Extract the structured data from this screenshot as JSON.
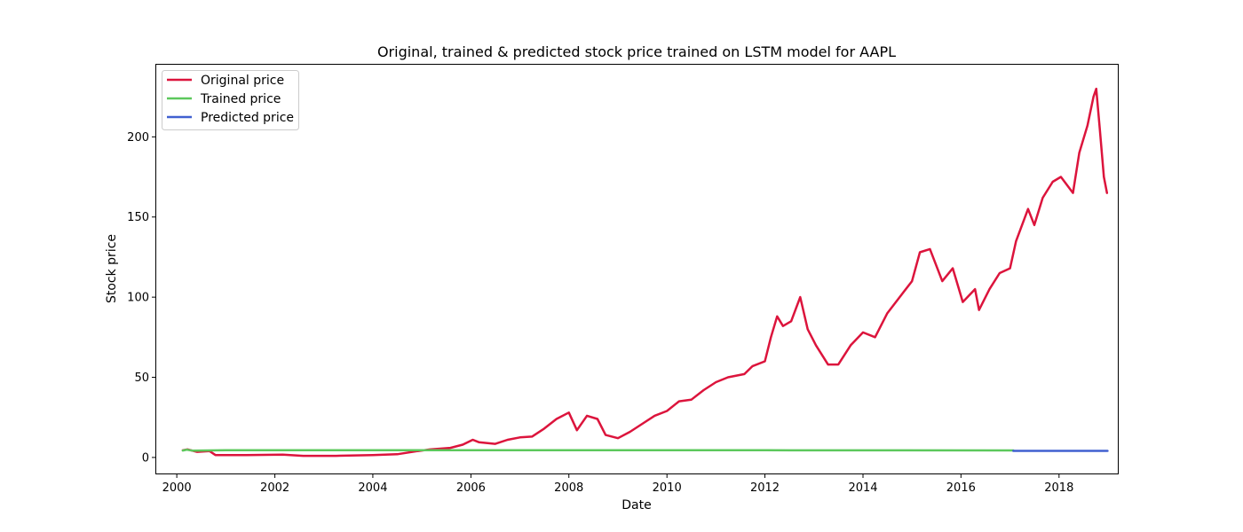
{
  "chart_data": {
    "type": "line",
    "title": "Original, trained & predicted stock price trained on LSTM model for AAPL",
    "xlabel": "Date",
    "ylabel": "Stock price",
    "x_type": "date",
    "xlim": [
      "1999-08-01",
      "2019-03-15"
    ],
    "ylim": [
      -10,
      245
    ],
    "x_ticks": [
      "2000-01-01",
      "2002-01-01",
      "2004-01-01",
      "2006-01-01",
      "2008-01-01",
      "2010-01-01",
      "2012-01-01",
      "2014-01-01",
      "2016-01-01",
      "2018-01-01"
    ],
    "x_tick_labels": [
      "2000",
      "2002",
      "2004",
      "2006",
      "2008",
      "2010",
      "2012",
      "2014",
      "2016",
      "2018"
    ],
    "y_ticks": [
      0,
      50,
      100,
      150,
      200
    ],
    "y_tick_labels": [
      "0",
      "50",
      "100",
      "150",
      "200"
    ],
    "grid": false,
    "legend_position": "top-left",
    "series": [
      {
        "name": "Original price",
        "color": "#dc143c",
        "points": [
          [
            "2000-02-15",
            4.5
          ],
          [
            "2000-03-20",
            5.0
          ],
          [
            "2000-06-01",
            3.5
          ],
          [
            "2000-09-01",
            4.0
          ],
          [
            "2000-10-15",
            1.5
          ],
          [
            "2001-06-01",
            1.5
          ],
          [
            "2002-03-01",
            1.8
          ],
          [
            "2002-08-01",
            1.0
          ],
          [
            "2003-04-01",
            1.0
          ],
          [
            "2004-01-01",
            1.5
          ],
          [
            "2004-07-01",
            2.0
          ],
          [
            "2004-12-01",
            4.0
          ],
          [
            "2005-03-01",
            5.0
          ],
          [
            "2005-08-01",
            6.0
          ],
          [
            "2005-11-01",
            8.0
          ],
          [
            "2006-01-15",
            11.0
          ],
          [
            "2006-03-01",
            9.5
          ],
          [
            "2006-07-01",
            8.5
          ],
          [
            "2006-10-01",
            11.0
          ],
          [
            "2007-01-01",
            12.5
          ],
          [
            "2007-04-01",
            13.0
          ],
          [
            "2007-07-01",
            18.0
          ],
          [
            "2007-10-01",
            24.0
          ],
          [
            "2008-01-01",
            28.0
          ],
          [
            "2008-03-01",
            17.0
          ],
          [
            "2008-05-15",
            26.0
          ],
          [
            "2008-08-01",
            24.0
          ],
          [
            "2008-10-01",
            14.0
          ],
          [
            "2009-01-01",
            12.0
          ],
          [
            "2009-04-01",
            16.0
          ],
          [
            "2009-07-01",
            21.0
          ],
          [
            "2009-10-01",
            26.0
          ],
          [
            "2010-01-01",
            29.0
          ],
          [
            "2010-04-01",
            35.0
          ],
          [
            "2010-07-01",
            36.0
          ],
          [
            "2010-10-01",
            42.0
          ],
          [
            "2011-01-01",
            47.0
          ],
          [
            "2011-04-01",
            50.0
          ],
          [
            "2011-08-01",
            52.0
          ],
          [
            "2011-10-01",
            57.0
          ],
          [
            "2012-01-01",
            60.0
          ],
          [
            "2012-02-15",
            75.0
          ],
          [
            "2012-04-01",
            88.0
          ],
          [
            "2012-05-15",
            82.0
          ],
          [
            "2012-07-15",
            85.0
          ],
          [
            "2012-09-20",
            100.0
          ],
          [
            "2012-11-15",
            80.0
          ],
          [
            "2013-01-15",
            70.0
          ],
          [
            "2013-04-15",
            58.0
          ],
          [
            "2013-07-01",
            58.0
          ],
          [
            "2013-10-01",
            70.0
          ],
          [
            "2014-01-01",
            78.0
          ],
          [
            "2014-04-01",
            75.0
          ],
          [
            "2014-07-01",
            90.0
          ],
          [
            "2014-10-01",
            100.0
          ],
          [
            "2015-01-01",
            110.0
          ],
          [
            "2015-03-01",
            128.0
          ],
          [
            "2015-05-15",
            130.0
          ],
          [
            "2015-08-15",
            110.0
          ],
          [
            "2015-11-01",
            118.0
          ],
          [
            "2016-01-15",
            97.0
          ],
          [
            "2016-04-15",
            105.0
          ],
          [
            "2016-05-15",
            92.0
          ],
          [
            "2016-08-01",
            105.0
          ],
          [
            "2016-10-15",
            115.0
          ],
          [
            "2017-01-01",
            118.0
          ],
          [
            "2017-02-15",
            135.0
          ],
          [
            "2017-05-15",
            155.0
          ],
          [
            "2017-07-01",
            145.0
          ],
          [
            "2017-09-01",
            162.0
          ],
          [
            "2017-11-15",
            172.0
          ],
          [
            "2018-01-15",
            175.0
          ],
          [
            "2018-04-15",
            165.0
          ],
          [
            "2018-06-01",
            190.0
          ],
          [
            "2018-08-01",
            207.0
          ],
          [
            "2018-09-15",
            225.0
          ],
          [
            "2018-10-05",
            230.0
          ],
          [
            "2018-11-01",
            205.0
          ],
          [
            "2018-12-01",
            175.0
          ],
          [
            "2018-12-24",
            165.0
          ]
        ]
      },
      {
        "name": "Trained price",
        "color": "#5cc85c",
        "points": [
          [
            "2000-02-15",
            4.3
          ],
          [
            "2000-03-15",
            4.8
          ],
          [
            "2000-05-01",
            4.2
          ],
          [
            "2001-01-01",
            4.5
          ],
          [
            "2004-06-01",
            4.5
          ],
          [
            "2005-06-01",
            4.5
          ],
          [
            "2008-01-01",
            4.5
          ],
          [
            "2012-01-01",
            4.5
          ],
          [
            "2017-01-25",
            4.4
          ]
        ]
      },
      {
        "name": "Predicted price",
        "color": "#4060d0",
        "points": [
          [
            "2017-01-25",
            4.1
          ],
          [
            "2018-01-01",
            4.1
          ],
          [
            "2018-12-28",
            4.1
          ]
        ]
      }
    ]
  }
}
